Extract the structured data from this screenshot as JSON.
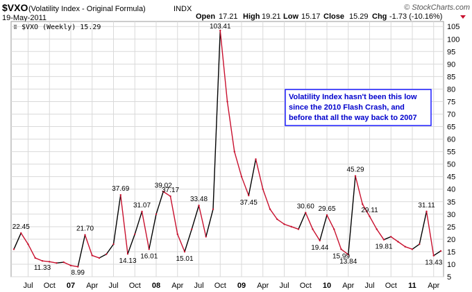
{
  "header": {
    "symbol": "$VXO",
    "name": "(Volatility Index - Original Formula)",
    "exchange": "INDX",
    "date": "19-May-2011",
    "brand": "© StockCharts.com",
    "quote": {
      "open_label": "Open",
      "open": "17.21",
      "high_label": "High",
      "high": "19.21",
      "low_label": "Low",
      "low": "15.17",
      "close_label": "Close",
      "close": "15.29",
      "chg_label": "Chg",
      "chg": "-1.73 (-10.16%)"
    }
  },
  "legend": {
    "label": "$VXO (Weekly) 15.29"
  },
  "annotation": {
    "lines": [
      "Volatility Index hasn't been this low",
      "since the 2010 Flash Crash, and",
      "before that all the way back to 2007"
    ]
  },
  "colors": {
    "up": "#000000",
    "down": "#c8102e",
    "grid": "#d9d9d9",
    "annotation_border": "#1a1aff",
    "annotation_text": "#0000cc",
    "chg_arrow": "#c8102e"
  },
  "chart_data": {
    "type": "line",
    "title": "$VXO (Volatility Index - Original Formula)",
    "series_name": "$VXO (Weekly)",
    "x_start": "2006-05",
    "x_end": "2011-05",
    "ylim": [
      5,
      107
    ],
    "y_ticks": [
      5,
      10,
      15,
      20,
      25,
      30,
      35,
      40,
      45,
      50,
      55,
      60,
      65,
      70,
      75,
      80,
      85,
      90,
      95,
      100,
      105
    ],
    "x_ticks": [
      {
        "label": "Jul",
        "x": "2006-07"
      },
      {
        "label": "Oct",
        "x": "2006-10"
      },
      {
        "label": "07",
        "x": "2007-01",
        "bold": true
      },
      {
        "label": "Apr",
        "x": "2007-04"
      },
      {
        "label": "Jul",
        "x": "2007-07"
      },
      {
        "label": "Oct",
        "x": "2007-10"
      },
      {
        "label": "08",
        "x": "2008-01",
        "bold": true
      },
      {
        "label": "Apr",
        "x": "2008-04"
      },
      {
        "label": "Jul",
        "x": "2008-07"
      },
      {
        "label": "Oct",
        "x": "2008-10"
      },
      {
        "label": "09",
        "x": "2009-01",
        "bold": true
      },
      {
        "label": "Apr",
        "x": "2009-04"
      },
      {
        "label": "Jul",
        "x": "2009-07"
      },
      {
        "label": "Oct",
        "x": "2009-10"
      },
      {
        "label": "10",
        "x": "2010-01",
        "bold": true
      },
      {
        "label": "Apr",
        "x": "2010-04"
      },
      {
        "label": "Jul",
        "x": "2010-07"
      },
      {
        "label": "Oct",
        "x": "2010-10"
      },
      {
        "label": "11",
        "x": "2011-01",
        "bold": true
      },
      {
        "label": "Apr",
        "x": "2011-04"
      }
    ],
    "points": [
      [
        "2006-05",
        16
      ],
      [
        "2006-06",
        22.45
      ],
      [
        "2006-07",
        18
      ],
      [
        "2006-08",
        12.5
      ],
      [
        "2006-09",
        11.33
      ],
      [
        "2006-10",
        11
      ],
      [
        "2006-11",
        10.5
      ],
      [
        "2006-12",
        10.8
      ],
      [
        "2007-01",
        9.5
      ],
      [
        "2007-02",
        8.99
      ],
      [
        "2007-03",
        21.7
      ],
      [
        "2007-04",
        13.5
      ],
      [
        "2007-05",
        12.5
      ],
      [
        "2007-06",
        14
      ],
      [
        "2007-07",
        18
      ],
      [
        "2007-08",
        37.69
      ],
      [
        "2007-09",
        14.13
      ],
      [
        "2007-10",
        22
      ],
      [
        "2007-11",
        31.07
      ],
      [
        "2007-12",
        16.01
      ],
      [
        "2008-01",
        30
      ],
      [
        "2008-02",
        39.02
      ],
      [
        "2008-03",
        37.17
      ],
      [
        "2008-04",
        22
      ],
      [
        "2008-05",
        15.01
      ],
      [
        "2008-06",
        24
      ],
      [
        "2008-07",
        33.48
      ],
      [
        "2008-08",
        21
      ],
      [
        "2008-09",
        32
      ],
      [
        "2008-10",
        103.41
      ],
      [
        "2008-11",
        75
      ],
      [
        "2008-12",
        55
      ],
      [
        "2009-01",
        45
      ],
      [
        "2009-02",
        37.45
      ],
      [
        "2009-03",
        52
      ],
      [
        "2009-04",
        40
      ],
      [
        "2009-05",
        32
      ],
      [
        "2009-06",
        28
      ],
      [
        "2009-07",
        26
      ],
      [
        "2009-08",
        25
      ],
      [
        "2009-09",
        24
      ],
      [
        "2009-10",
        30.6
      ],
      [
        "2009-11",
        24
      ],
      [
        "2009-12",
        19.44
      ],
      [
        "2010-01",
        29.65
      ],
      [
        "2010-02",
        24
      ],
      [
        "2010-03",
        15.99
      ],
      [
        "2010-04",
        13.84
      ],
      [
        "2010-05",
        45.29
      ],
      [
        "2010-06",
        34
      ],
      [
        "2010-07",
        29.11
      ],
      [
        "2010-08",
        24
      ],
      [
        "2010-09",
        19.81
      ],
      [
        "2010-10",
        21
      ],
      [
        "2010-11",
        19
      ],
      [
        "2010-12",
        17
      ],
      [
        "2011-01",
        16
      ],
      [
        "2011-02",
        18
      ],
      [
        "2011-03",
        31.11
      ],
      [
        "2011-04",
        13.43
      ],
      [
        "2011-05",
        15.29
      ]
    ],
    "labels": [
      {
        "text": "22.45",
        "x": "2006-06",
        "y": 22.45,
        "pos": "above"
      },
      {
        "text": "11.33",
        "x": "2006-09",
        "y": 11.33,
        "pos": "below"
      },
      {
        "text": "8.99",
        "x": "2007-02",
        "y": 8.99,
        "pos": "below"
      },
      {
        "text": "21.70",
        "x": "2007-03",
        "y": 21.7,
        "pos": "above"
      },
      {
        "text": "37.69",
        "x": "2007-08",
        "y": 37.69,
        "pos": "above"
      },
      {
        "text": "14.13",
        "x": "2007-09",
        "y": 14.13,
        "pos": "below"
      },
      {
        "text": "31.07",
        "x": "2007-11",
        "y": 31.07,
        "pos": "above"
      },
      {
        "text": "16.01",
        "x": "2007-12",
        "y": 16.01,
        "pos": "below"
      },
      {
        "text": "39.02",
        "x": "2008-02",
        "y": 39.02,
        "pos": "above"
      },
      {
        "text": "37.17",
        "x": "2008-03",
        "y": 37.17,
        "pos": "above"
      },
      {
        "text": "15.01",
        "x": "2008-05",
        "y": 15.01,
        "pos": "below"
      },
      {
        "text": "33.48",
        "x": "2008-07",
        "y": 33.48,
        "pos": "above"
      },
      {
        "text": "103.41",
        "x": "2008-10",
        "y": 103.41,
        "pos": "above"
      },
      {
        "text": "37.45",
        "x": "2009-02",
        "y": 37.45,
        "pos": "below"
      },
      {
        "text": "30.60",
        "x": "2009-10",
        "y": 30.6,
        "pos": "above"
      },
      {
        "text": "19.44",
        "x": "2009-12",
        "y": 19.44,
        "pos": "below"
      },
      {
        "text": "29.65",
        "x": "2010-01",
        "y": 29.65,
        "pos": "above"
      },
      {
        "text": "15.99",
        "x": "2010-03",
        "y": 15.99,
        "pos": "below"
      },
      {
        "text": "13.84",
        "x": "2010-04",
        "y": 13.84,
        "pos": "below"
      },
      {
        "text": "45.29",
        "x": "2010-05",
        "y": 45.29,
        "pos": "above"
      },
      {
        "text": "29.11",
        "x": "2010-07",
        "y": 29.11,
        "pos": "above"
      },
      {
        "text": "19.81",
        "x": "2010-09",
        "y": 19.81,
        "pos": "below"
      },
      {
        "text": "31.11",
        "x": "2011-03",
        "y": 31.11,
        "pos": "above"
      },
      {
        "text": "13.43",
        "x": "2011-04",
        "y": 13.43,
        "pos": "below"
      }
    ]
  }
}
